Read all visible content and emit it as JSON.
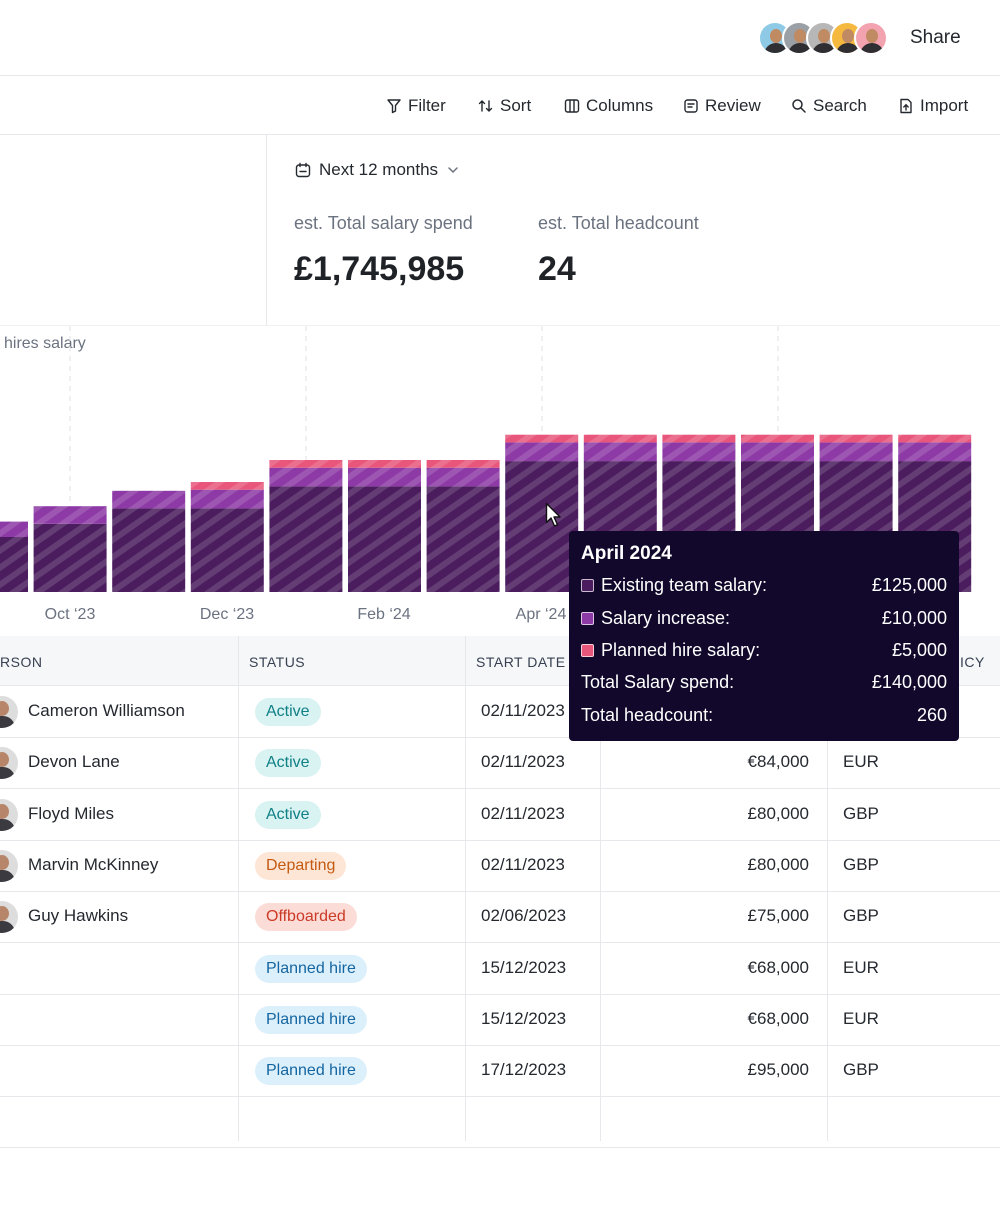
{
  "header": {
    "share_label": "Share",
    "avatars": [
      {
        "name": "avatar-1",
        "bg": "#8ecae6"
      },
      {
        "name": "avatar-2",
        "bg": "#9aa0a6"
      },
      {
        "name": "avatar-3",
        "bg": "#b7b7b7"
      },
      {
        "name": "avatar-4",
        "bg": "#f5b93f"
      },
      {
        "name": "avatar-5",
        "bg": "#f3a3b0"
      }
    ]
  },
  "toolbar": {
    "filter": "Filter",
    "sort": "Sort",
    "columns": "Columns",
    "review": "Review",
    "search": "Search",
    "import": "Import"
  },
  "stats": {
    "period": "Next 12 months",
    "salary_label": "est. Total salary spend",
    "salary_value": "£1,745,985",
    "headcount_label": "est. Total headcount",
    "headcount_value": "24"
  },
  "chart_data": {
    "type": "bar",
    "legend_fragment": "hires salary",
    "x_tick_labels": [
      "Oct ‘23",
      "Dec ‘23",
      "Feb ‘24",
      "Apr ‘24"
    ],
    "series": [
      {
        "key": "existing",
        "color": "#4b1d5e"
      },
      {
        "key": "increase",
        "color": "#8e3aa6"
      },
      {
        "key": "planned",
        "color": "#e8577b"
      }
    ],
    "bars": [
      {
        "existing": 0.5,
        "increase": 0.14,
        "planned": 0
      },
      {
        "existing": 0.62,
        "increase": 0.16,
        "planned": 0
      },
      {
        "existing": 0.76,
        "increase": 0.16,
        "planned": 0
      },
      {
        "existing": 0.76,
        "increase": 0.17,
        "planned": 0.07
      },
      {
        "existing": 0.96,
        "increase": 0.17,
        "planned": 0.07
      },
      {
        "existing": 0.96,
        "increase": 0.17,
        "planned": 0.07
      },
      {
        "existing": 0.96,
        "increase": 0.17,
        "planned": 0.07
      },
      {
        "existing": 1.19,
        "increase": 0.17,
        "planned": 0.07
      },
      {
        "existing": 1.19,
        "increase": 0.17,
        "planned": 0.07
      },
      {
        "existing": 1.19,
        "increase": 0.17,
        "planned": 0.07
      },
      {
        "existing": 1.19,
        "increase": 0.17,
        "planned": 0.07
      },
      {
        "existing": 1.19,
        "increase": 0.17,
        "planned": 0.07
      },
      {
        "existing": 1.19,
        "increase": 0.17,
        "planned": 0.07
      }
    ],
    "tooltip": {
      "title": "April 2024",
      "rows": [
        {
          "label": "Existing team salary:",
          "value": "£125,000",
          "color": "#4b1d5e"
        },
        {
          "label": "Salary increase:",
          "value": "£10,000",
          "color": "#8e3aa6"
        },
        {
          "label": "Planned hire salary:",
          "value": "£5,000",
          "color": "#e8577b"
        }
      ],
      "total_label": "Total Salary spend:",
      "total_value": "£140,000",
      "headcount_label": "Total headcount:",
      "headcount_value": "260"
    }
  },
  "table": {
    "headers": {
      "person": "RSON",
      "status": "STATUS",
      "start_date": "START DATE",
      "currency": "ICY"
    },
    "rows": [
      {
        "name": "Cameron Williamson",
        "status": "Active",
        "status_class": "b-active",
        "date": "02/11/2023",
        "salary": "",
        "currency": ""
      },
      {
        "name": "Devon Lane",
        "status": "Active",
        "status_class": "b-active",
        "date": "02/11/2023",
        "salary": "€84,000",
        "currency": "EUR"
      },
      {
        "name": "Floyd Miles",
        "status": "Active",
        "status_class": "b-active",
        "date": "02/11/2023",
        "salary": "£80,000",
        "currency": "GBP"
      },
      {
        "name": "Marvin McKinney",
        "status": "Departing",
        "status_class": "b-departing",
        "date": "02/11/2023",
        "salary": "£80,000",
        "currency": "GBP"
      },
      {
        "name": "Guy Hawkins",
        "status": "Offboarded",
        "status_class": "b-offboarded",
        "date": "02/06/2023",
        "salary": "£75,000",
        "currency": "GBP"
      },
      {
        "name": "",
        "status": "Planned hire",
        "status_class": "b-planned",
        "date": "15/12/2023",
        "salary": "€68,000",
        "currency": "EUR"
      },
      {
        "name": "",
        "status": "Planned hire",
        "status_class": "b-planned",
        "date": "15/12/2023",
        "salary": "€68,000",
        "currency": "EUR"
      },
      {
        "name": "",
        "status": "Planned hire",
        "status_class": "b-planned",
        "date": "17/12/2023",
        "salary": "£95,000",
        "currency": "GBP"
      }
    ]
  }
}
